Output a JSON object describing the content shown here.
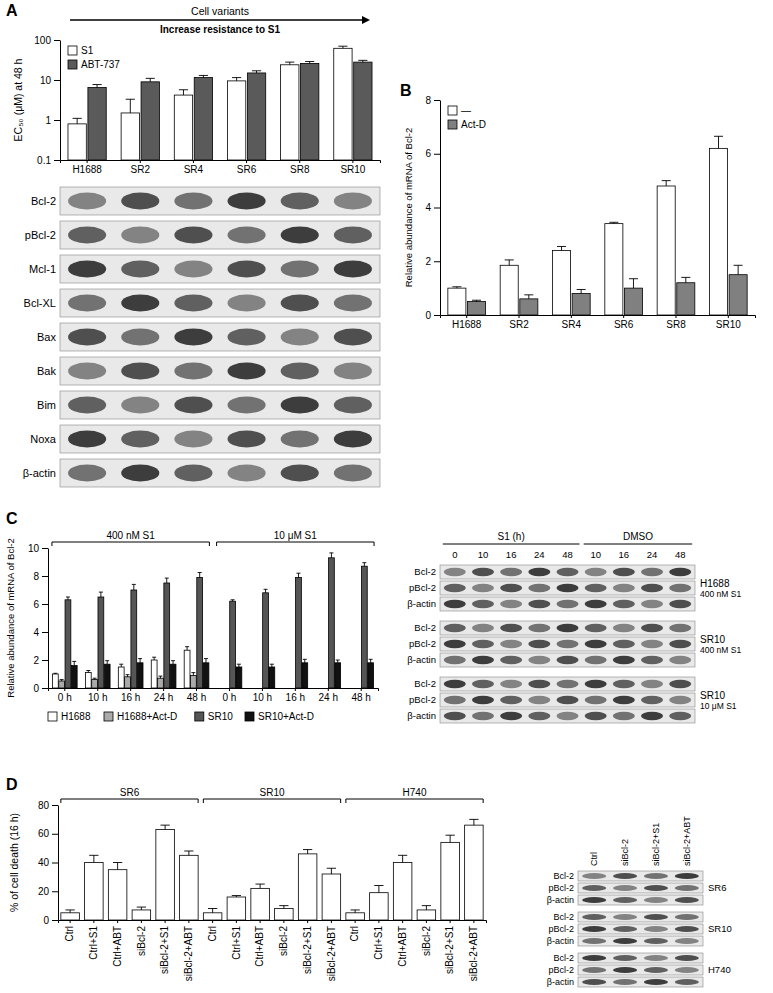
{
  "chart_data": [
    {
      "type": "bar",
      "title": "Cell variants",
      "subtitle": "Increase resistance to S1",
      "annotations": [
        "A"
      ],
      "y_label": "EC₅₀ (μM) at 48 h",
      "categories": [
        "H1688",
        "SR2",
        "SR4",
        "SR6",
        "SR8",
        "SR10"
      ],
      "series": [
        {
          "name": "S1",
          "color": "#ffffff",
          "values": [
            0.8,
            1.5,
            4.2,
            9.5,
            24,
            62
          ],
          "errors": [
            0.3,
            1.8,
            1.5,
            2,
            4,
            8
          ]
        },
        {
          "name": "ABT-737",
          "color": "#5a5a5a",
          "values": [
            6.5,
            9,
            11.5,
            15,
            26,
            28
          ],
          "errors": [
            1.2,
            2,
            1.5,
            2,
            3,
            3
          ]
        }
      ],
      "ylim": [
        0.1,
        100
      ],
      "yticks": [
        0.1,
        1,
        10,
        100
      ],
      "log": "y",
      "legend": "top-left"
    },
    {
      "type": "bar",
      "annotations": [
        "B"
      ],
      "y_label": "Relative abundance of mRNA of Bcl-2",
      "categories": [
        "H1688",
        "SR2",
        "SR4",
        "SR6",
        "SR8",
        "SR10"
      ],
      "series": [
        {
          "name": "—",
          "color": "#ffffff",
          "values": [
            1.0,
            1.85,
            2.4,
            3.4,
            4.8,
            6.2
          ],
          "errors": [
            0.05,
            0.2,
            0.15,
            0.05,
            0.2,
            0.45
          ]
        },
        {
          "name": "Act-D",
          "color": "#808080",
          "values": [
            0.5,
            0.6,
            0.8,
            1.0,
            1.2,
            1.5
          ],
          "errors": [
            0.05,
            0.15,
            0.15,
            0.35,
            0.2,
            0.35
          ]
        }
      ],
      "ylim": [
        0,
        8
      ],
      "yticks": [
        0,
        2,
        4,
        6,
        8
      ],
      "legend": "top-left"
    },
    {
      "type": "bar",
      "annotations": [
        "C"
      ],
      "y_label": "Relative abundance of mRNA of Bcl-2",
      "categories": [
        "0 h",
        "10 h",
        "16 h",
        "24 h",
        "48 h",
        "0 h",
        "10 h",
        "16 h",
        "24 h",
        "48 h"
      ],
      "groups": [
        {
          "label": "400 nM S1",
          "count": 5
        },
        {
          "label": "10 μM S1",
          "count": 5
        }
      ],
      "series": [
        {
          "name": "H1688",
          "color": "#ffffff",
          "values": [
            1.0,
            1.1,
            1.5,
            2.0,
            2.7,
            null,
            null,
            null,
            null,
            null
          ],
          "errors": [
            0.05,
            0.15,
            0.2,
            0.2,
            0.25,
            null,
            null,
            null,
            null,
            null
          ]
        },
        {
          "name": "H1688+Act-D",
          "color": "#aaaaaa",
          "values": [
            0.5,
            0.6,
            0.8,
            0.7,
            0.9,
            null,
            null,
            null,
            null,
            null
          ],
          "errors": [
            0.1,
            0.1,
            0.15,
            0.15,
            0.2,
            null,
            null,
            null,
            null,
            null
          ]
        },
        {
          "name": "SR10",
          "color": "#555555",
          "values": [
            6.3,
            6.5,
            7.0,
            7.5,
            7.9,
            6.2,
            6.8,
            7.9,
            9.3,
            8.7
          ],
          "errors": [
            0.2,
            0.35,
            0.4,
            0.35,
            0.35,
            0.1,
            0.25,
            0.3,
            0.35,
            0.25
          ]
        },
        {
          "name": "SR10+Act-D",
          "color": "#111111",
          "values": [
            1.6,
            1.7,
            1.8,
            1.7,
            1.8,
            1.5,
            1.5,
            1.8,
            1.8,
            1.8
          ],
          "errors": [
            0.3,
            0.25,
            0.3,
            0.25,
            0.3,
            0.2,
            0.2,
            0.25,
            0.2,
            0.25
          ]
        }
      ],
      "ylim": [
        0,
        10
      ],
      "yticks": [
        0,
        2,
        4,
        6,
        8,
        10
      ],
      "legend": "bottom"
    },
    {
      "type": "bar",
      "annotations": [
        "D"
      ],
      "y_label": "% of cell death (16 h)",
      "categories": [
        "Ctrl",
        "Ctrl+S1",
        "Ctrl+ABT",
        "siBcl-2",
        "siBcl-2+S1",
        "siBcl-2+ABT",
        "Ctrl",
        "Ctrl+S1",
        "Ctrl+ABT",
        "siBcl-2",
        "siBcl-2+S1",
        "siBcl-2+ABT",
        "Ctrl",
        "Ctrl+S1",
        "Ctrl+ABT",
        "siBcl-2",
        "siBcl-2+S1",
        "siBcl-2+ABT"
      ],
      "groups": [
        {
          "label": "SR6",
          "count": 6
        },
        {
          "label": "SR10",
          "count": 6
        },
        {
          "label": "H740",
          "count": 6
        }
      ],
      "color": "#ffffff",
      "values": [
        5,
        40,
        35,
        7,
        63,
        45,
        5,
        16,
        22,
        8,
        46,
        32,
        5,
        19,
        40,
        7,
        54,
        66
      ],
      "errors": [
        2,
        5,
        5,
        2,
        3,
        3,
        3,
        1,
        3,
        2,
        3,
        4,
        2,
        5,
        5,
        3,
        5,
        4
      ],
      "ylim": [
        0,
        80
      ],
      "yticks": [
        0,
        20,
        40,
        60,
        80
      ]
    }
  ],
  "blots": [
    {
      "sections": [
        {
          "rows": [
            "Bcl-2",
            "pBcl-2",
            "Mcl-1",
            "Bcl-XL",
            "Bax",
            "Bak",
            "Bim",
            "Noxa",
            "β-actin"
          ]
        }
      ]
    },
    {
      "lane_groups": [
        {
          "label": "S1 (h)",
          "lanes": [
            "0",
            "10",
            "16",
            "24",
            "48"
          ]
        },
        {
          "label": "DMSO",
          "lanes": [
            "10",
            "16",
            "24",
            "48"
          ]
        }
      ],
      "sections": [
        {
          "label": "H1688",
          "sublabel": "400 nM S1",
          "rows": [
            "Bcl-2",
            "pBcl-2",
            "β-actin"
          ]
        },
        {
          "label": "SR10",
          "sublabel": "400 nM S1",
          "rows": [
            "Bcl-2",
            "pBcl-2",
            "β-actin"
          ]
        },
        {
          "label": "SR10",
          "sublabel": "10 μM S1",
          "rows": [
            "Bcl-2",
            "pBcl-2",
            "β-actin"
          ]
        }
      ]
    },
    {
      "lanes": [
        "Ctrl",
        "siBcl-2",
        "siBcl-2+S1",
        "siBcl-2+ABT"
      ],
      "sections": [
        {
          "label": "SR6",
          "rows": [
            "Bcl-2",
            "pBcl-2",
            "β-actin"
          ]
        },
        {
          "label": "SR10",
          "rows": [
            "Bcl-2",
            "pBcl-2",
            "β-actin"
          ]
        },
        {
          "label": "H740",
          "rows": [
            "Bcl-2",
            "pBcl-2",
            "β-actin"
          ]
        }
      ]
    }
  ]
}
